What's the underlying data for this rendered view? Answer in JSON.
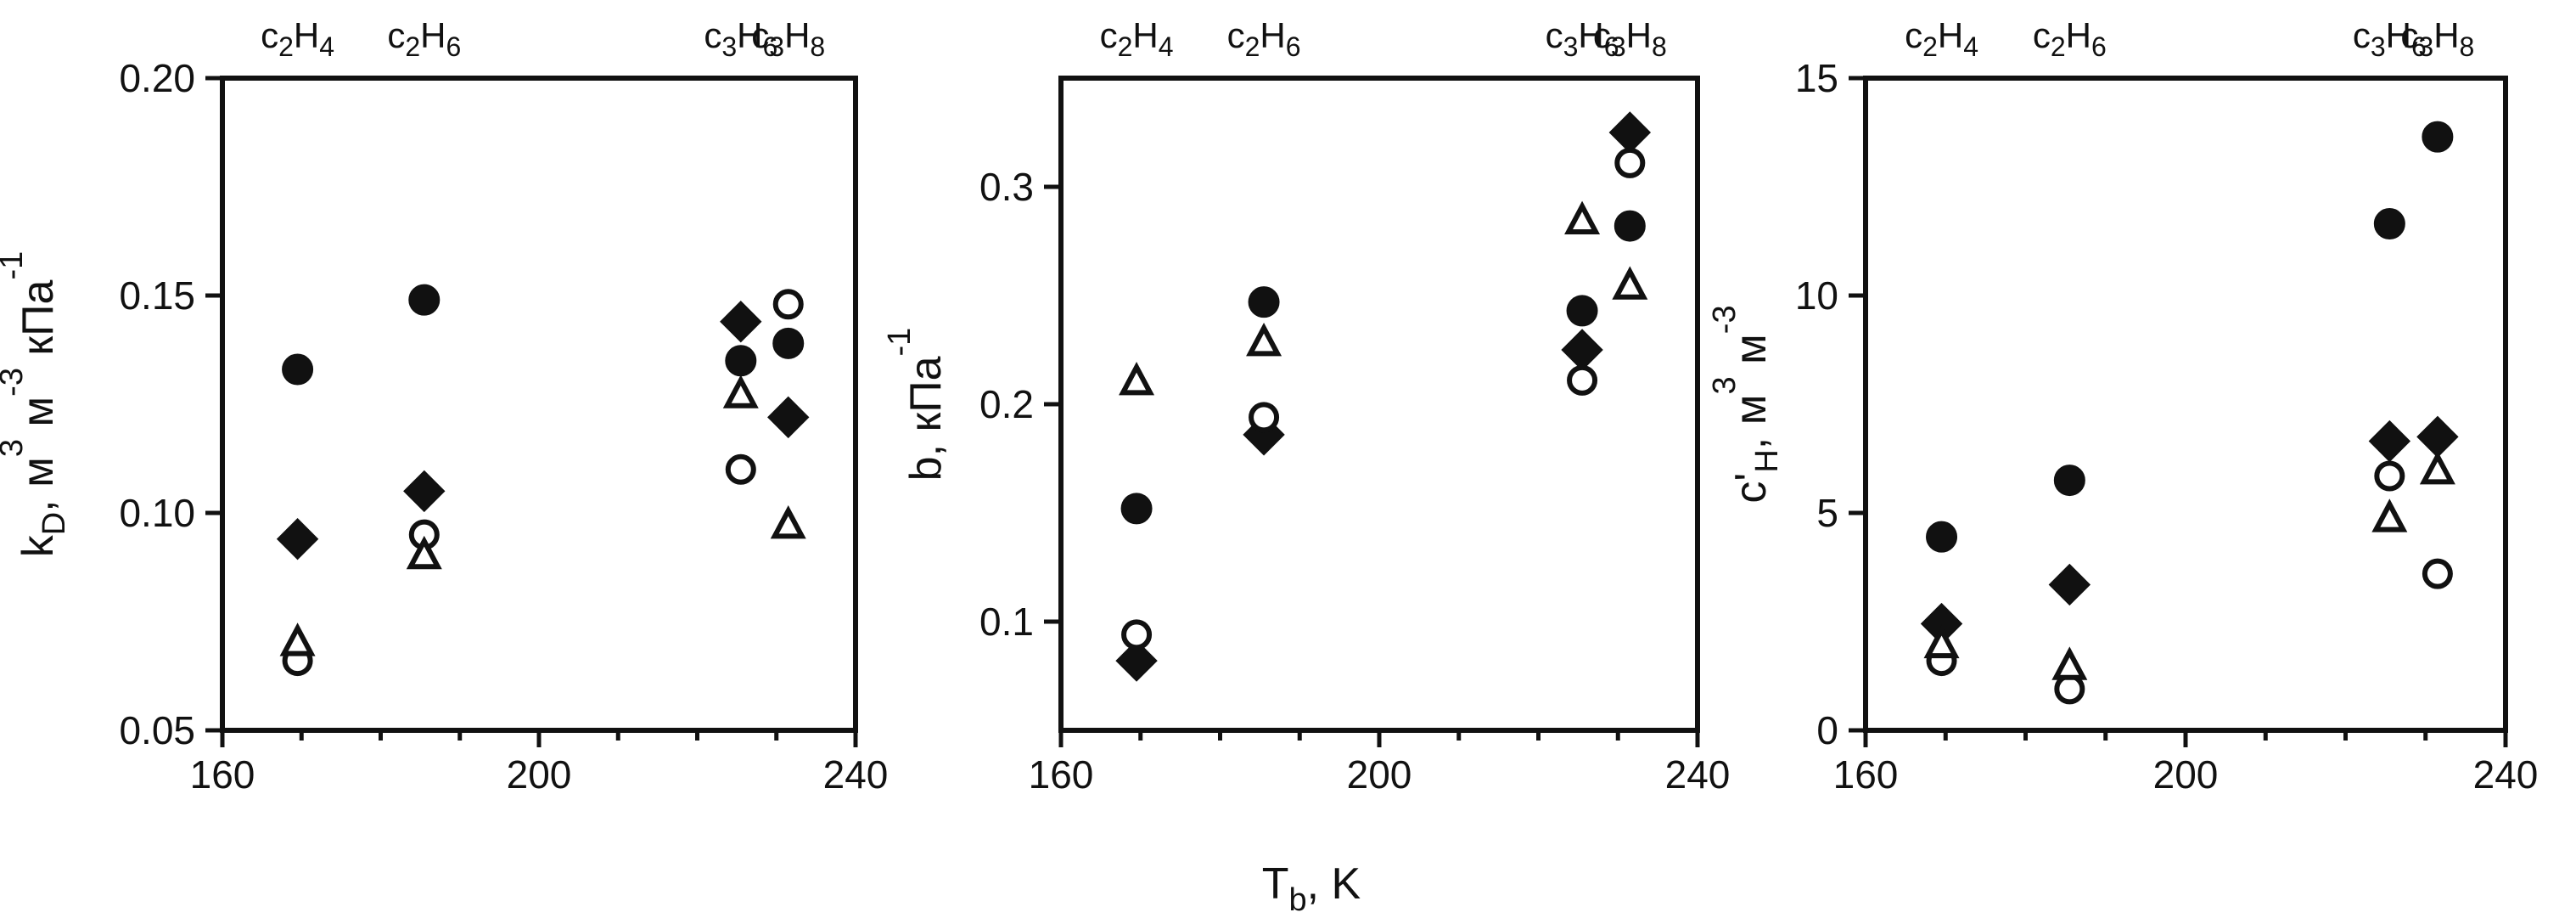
{
  "figure": {
    "xlabel": {
      "main": "T",
      "sub": "b",
      "rest": ", K"
    }
  },
  "chart_data": [
    {
      "type": "scatter",
      "ylabel": {
        "lead": "k",
        "sub1": "D",
        "mid": ", м",
        "sup1": "3",
        "mid2": " м",
        "sup2": "-3",
        "mid3": " кПа",
        "sup3": "-1"
      },
      "xlim": [
        160,
        240
      ],
      "ylim": [
        0.05,
        0.2
      ],
      "xticks": [
        160,
        200,
        240
      ],
      "yticks": [
        0.05,
        0.1,
        0.15,
        0.2
      ],
      "xtick_labels": [
        "160",
        "200",
        "240"
      ],
      "ytick_labels": [
        "0.05",
        "0.10",
        "0.15",
        "0.20"
      ],
      "top_labels": [
        {
          "x": 169.5,
          "base": "C",
          "n1": "2",
          "mid": "H",
          "n2": "4"
        },
        {
          "x": 185.5,
          "base": "C",
          "n1": "2",
          "mid": "H",
          "n2": "6"
        },
        {
          "x": 225.5,
          "base": "C",
          "n1": "3",
          "mid": "H",
          "n2": "6"
        },
        {
          "x": 231.5,
          "base": "C",
          "n1": "3",
          "mid": "H",
          "n2": "8"
        }
      ],
      "series": [
        {
          "marker": "filled-circle",
          "x": [
            169.5,
            185.5,
            225.5,
            231.5
          ],
          "values": [
            0.133,
            0.149,
            0.135,
            0.139
          ]
        },
        {
          "marker": "filled-diamond",
          "x": [
            169.5,
            185.5,
            225.5,
            231.5
          ],
          "values": [
            0.094,
            0.105,
            0.144,
            0.122
          ]
        },
        {
          "marker": "open-circle",
          "x": [
            169.5,
            185.5,
            225.5,
            231.5
          ],
          "values": [
            0.066,
            0.095,
            0.11,
            0.148
          ]
        },
        {
          "marker": "open-triangle",
          "x": [
            169.5,
            185.5,
            225.5,
            231.5
          ],
          "values": [
            0.07,
            0.09,
            0.127,
            0.097
          ]
        }
      ]
    },
    {
      "type": "scatter",
      "ylabel": {
        "lead": "b, кПа",
        "sup1": "-1"
      },
      "xlim": [
        160,
        240
      ],
      "ylim": [
        0.05,
        0.35
      ],
      "xticks": [
        160,
        200,
        240
      ],
      "yticks": [
        0.1,
        0.2,
        0.3
      ],
      "xtick_labels": [
        "160",
        "200",
        "240"
      ],
      "ytick_labels": [
        "0.1",
        "0.2",
        "0.3"
      ],
      "top_labels": [
        {
          "x": 169.5,
          "base": "C",
          "n1": "2",
          "mid": "H",
          "n2": "4"
        },
        {
          "x": 185.5,
          "base": "C",
          "n1": "2",
          "mid": "H",
          "n2": "6"
        },
        {
          "x": 225.5,
          "base": "C",
          "n1": "3",
          "mid": "H",
          "n2": "6"
        },
        {
          "x": 231.5,
          "base": "C",
          "n1": "3",
          "mid": "H",
          "n2": "8"
        }
      ],
      "series": [
        {
          "marker": "filled-circle",
          "x": [
            169.5,
            185.5,
            225.5,
            231.5
          ],
          "values": [
            0.152,
            0.247,
            0.243,
            0.282
          ]
        },
        {
          "marker": "filled-diamond",
          "x": [
            169.5,
            185.5,
            225.5,
            231.5
          ],
          "values": [
            0.082,
            0.186,
            0.225,
            0.325
          ]
        },
        {
          "marker": "open-circle",
          "x": [
            169.5,
            185.5,
            225.5,
            231.5
          ],
          "values": [
            0.094,
            0.194,
            0.211,
            0.311
          ]
        },
        {
          "marker": "open-triangle",
          "x": [
            169.5,
            185.5,
            225.5,
            231.5
          ],
          "values": [
            0.21,
            0.228,
            0.284,
            0.254
          ]
        }
      ]
    },
    {
      "type": "scatter",
      "ylabel": {
        "lead": "c'",
        "sub1": "H",
        "mid": ", м",
        "sup1": "3",
        "mid2": " м",
        "sup2": "-3"
      },
      "xlim": [
        160,
        240
      ],
      "ylim": [
        0,
        15
      ],
      "xticks": [
        160,
        200,
        240
      ],
      "yticks": [
        0,
        5,
        10,
        15
      ],
      "xtick_labels": [
        "160",
        "200",
        "240"
      ],
      "ytick_labels": [
        "0",
        "5",
        "10",
        "15"
      ],
      "top_labels": [
        {
          "x": 169.5,
          "base": "C",
          "n1": "2",
          "mid": "H",
          "n2": "4"
        },
        {
          "x": 185.5,
          "base": "C",
          "n1": "2",
          "mid": "H",
          "n2": "6"
        },
        {
          "x": 225.5,
          "base": "C",
          "n1": "3",
          "mid": "H",
          "n2": "6"
        },
        {
          "x": 231.5,
          "base": "C",
          "n1": "3",
          "mid": "H",
          "n2": "8"
        }
      ],
      "series": [
        {
          "marker": "filled-circle",
          "x": [
            169.5,
            185.5,
            225.5,
            231.5
          ],
          "values": [
            4.45,
            5.75,
            11.65,
            13.65
          ]
        },
        {
          "marker": "filled-diamond",
          "x": [
            169.5,
            185.5,
            225.5,
            231.5
          ],
          "values": [
            2.45,
            3.35,
            6.65,
            6.75
          ]
        },
        {
          "marker": "open-circle",
          "x": [
            169.5,
            185.5,
            225.5,
            231.5
          ],
          "values": [
            1.6,
            0.95,
            5.85,
            3.6
          ]
        },
        {
          "marker": "open-triangle",
          "x": [
            169.5,
            185.5,
            225.5,
            231.5
          ],
          "values": [
            1.95,
            1.45,
            4.85,
            5.95
          ]
        }
      ]
    }
  ]
}
